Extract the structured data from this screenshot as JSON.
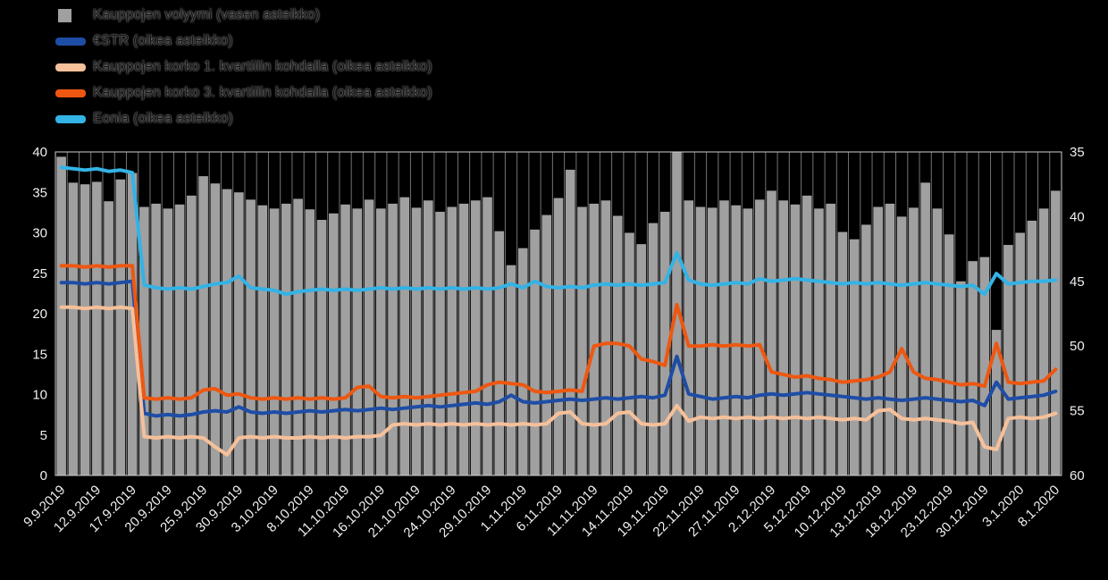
{
  "page": {
    "background_color": "#000000"
  },
  "legend": {
    "position": "top-left",
    "items": [
      {
        "id": "volume",
        "label": "Kauppojen volyymi (vasen asteikko)",
        "color": "#a0a0a0",
        "swatch": "square"
      },
      {
        "id": "estr",
        "label": "€STR (oikea asteikko)",
        "color": "#1e4da6",
        "swatch": "line"
      },
      {
        "id": "q1",
        "label": "Kauppojen korko 1. kvartiilin kohdalla (oikea asteikko)",
        "color": "#f6c09a",
        "swatch": "line"
      },
      {
        "id": "q3",
        "label": "Kauppojen korko 3. kvartiilin kohdalla (oikea asteikko)",
        "color": "#ee5711",
        "swatch": "line"
      },
      {
        "id": "eonia",
        "label": "Eonia (oikea asteikko)",
        "color": "#33b3e6",
        "swatch": "line"
      }
    ]
  },
  "chart_data": {
    "type": "combo-bar-line",
    "title": "",
    "legend_position": "top-left",
    "grid": {
      "vertical": true,
      "horizontal": false
    },
    "x_tick_step": 3,
    "left_axis": {
      "min": 0,
      "max": 40,
      "tick_values": [
        40,
        35,
        30,
        25,
        20,
        15,
        10,
        5,
        0
      ],
      "tick_labels": [
        "40",
        "35",
        "30",
        "25",
        "20",
        "15",
        "10",
        "5",
        "0"
      ]
    },
    "right_axis": {
      "min": -0.6,
      "max": -0.35,
      "tick_values": [
        -0.35,
        -0.4,
        -0.45,
        -0.5,
        -0.55,
        -0.6
      ],
      "tick_labels": [
        "35",
        "40",
        "45",
        "50",
        "55",
        "60"
      ]
    },
    "categories": [
      "9.9.2019",
      "10.9.2019",
      "11.9.2019",
      "12.9.2019",
      "13.9.2019",
      "16.9.2019",
      "17.9.2019",
      "18.9.2019",
      "19.9.2019",
      "20.9.2019",
      "23.9.2019",
      "24.9.2019",
      "25.9.2019",
      "26.9.2019",
      "27.9.2019",
      "30.9.2019",
      "1.10.2019",
      "2.10.2019",
      "3.10.2019",
      "4.10.2019",
      "7.10.2019",
      "8.10.2019",
      "9.10.2019",
      "10.10.2019",
      "11.10.2019",
      "14.10.2019",
      "15.10.2019",
      "16.10.2019",
      "17.10.2019",
      "18.10.2019",
      "21.10.2019",
      "22.10.2019",
      "23.10.2019",
      "24.10.2019",
      "25.10.2019",
      "28.10.2019",
      "29.10.2019",
      "30.10.2019",
      "31.10.2019",
      "1.11.2019",
      "4.11.2019",
      "5.11.2019",
      "6.11.2019",
      "7.11.2019",
      "8.11.2019",
      "11.11.2019",
      "12.11.2019",
      "13.11.2019",
      "14.11.2019",
      "15.11.2019",
      "18.11.2019",
      "19.11.2019",
      "20.11.2019",
      "21.11.2019",
      "22.11.2019",
      "25.11.2019",
      "26.11.2019",
      "27.11.2019",
      "28.11.2019",
      "29.11.2019",
      "2.12.2019",
      "3.12.2019",
      "4.12.2019",
      "5.12.2019",
      "6.12.2019",
      "9.12.2019",
      "10.12.2019",
      "11.12.2019",
      "12.12.2019",
      "13.12.2019",
      "16.12.2019",
      "17.12.2019",
      "18.12.2019",
      "19.12.2019",
      "20.12.2019",
      "23.12.2019",
      "24.12.2019",
      "27.12.2019",
      "30.12.2019",
      "31.12.2019",
      "2.1.2020",
      "3.1.2020",
      "6.1.2020",
      "7.1.2020",
      "8.1.2020"
    ],
    "series": [
      {
        "id": "volume",
        "name": "Kauppojen volyymi (vasen asteikko)",
        "type": "bar",
        "axis": "left",
        "color": "#a0a0a0",
        "values": [
          39.4,
          36.2,
          36.0,
          36.3,
          33.9,
          36.6,
          37.4,
          33.2,
          33.6,
          33.0,
          33.5,
          34.6,
          37.0,
          36.1,
          35.4,
          35.0,
          34.1,
          33.4,
          33.0,
          33.6,
          34.2,
          32.9,
          31.6,
          32.4,
          33.5,
          33.0,
          34.1,
          33.0,
          33.6,
          34.4,
          33.1,
          34.0,
          32.6,
          33.2,
          33.6,
          34.0,
          34.4,
          30.2,
          26.0,
          28.1,
          30.4,
          32.2,
          34.3,
          37.8,
          33.2,
          33.6,
          34.0,
          32.1,
          30.0,
          28.6,
          31.2,
          32.6,
          40.0,
          34.0,
          33.2,
          33.1,
          34.0,
          33.4,
          33.0,
          34.1,
          35.2,
          34.0,
          33.5,
          34.6,
          33.0,
          33.6,
          30.1,
          29.2,
          31.0,
          33.2,
          33.6,
          32.0,
          33.1,
          36.2,
          33.0,
          29.8,
          24.0,
          26.5,
          27.0,
          18.0,
          28.5,
          30.0,
          31.5,
          33.0,
          35.2
        ]
      },
      {
        "id": "estr",
        "name": "€STR (oikea asteikko)",
        "type": "line",
        "axis": "right",
        "color": "#1e4da6",
        "values": [
          -0.451,
          -0.451,
          -0.452,
          -0.451,
          -0.452,
          -0.451,
          -0.45,
          -0.552,
          -0.554,
          -0.553,
          -0.554,
          -0.553,
          -0.551,
          -0.55,
          -0.551,
          -0.547,
          -0.551,
          -0.552,
          -0.551,
          -0.552,
          -0.551,
          -0.55,
          -0.551,
          -0.55,
          -0.549,
          -0.55,
          -0.549,
          -0.548,
          -0.549,
          -0.548,
          -0.547,
          -0.546,
          -0.547,
          -0.546,
          -0.545,
          -0.544,
          -0.545,
          -0.543,
          -0.538,
          -0.543,
          -0.544,
          -0.543,
          -0.542,
          -0.541,
          -0.542,
          -0.541,
          -0.54,
          -0.541,
          -0.54,
          -0.539,
          -0.54,
          -0.538,
          -0.508,
          -0.537,
          -0.539,
          -0.541,
          -0.54,
          -0.539,
          -0.54,
          -0.538,
          -0.537,
          -0.538,
          -0.537,
          -0.536,
          -0.537,
          -0.538,
          -0.539,
          -0.54,
          -0.541,
          -0.54,
          -0.541,
          -0.542,
          -0.541,
          -0.54,
          -0.541,
          -0.542,
          -0.543,
          -0.542,
          -0.546,
          -0.528,
          -0.541,
          -0.54,
          -0.539,
          -0.538,
          -0.535
        ]
      },
      {
        "id": "q1",
        "name": "Kauppojen korko 1. kvartiilin kohdalla (oikea asteikko)",
        "type": "line",
        "axis": "right",
        "color": "#f6c09a",
        "values": [
          -0.47,
          -0.47,
          -0.471,
          -0.47,
          -0.471,
          -0.47,
          -0.471,
          -0.57,
          -0.571,
          -0.57,
          -0.571,
          -0.57,
          -0.571,
          -0.578,
          -0.584,
          -0.571,
          -0.57,
          -0.571,
          -0.57,
          -0.571,
          -0.571,
          -0.57,
          -0.571,
          -0.57,
          -0.571,
          -0.57,
          -0.57,
          -0.569,
          -0.561,
          -0.56,
          -0.561,
          -0.56,
          -0.561,
          -0.56,
          -0.561,
          -0.56,
          -0.561,
          -0.56,
          -0.561,
          -0.56,
          -0.561,
          -0.56,
          -0.552,
          -0.551,
          -0.56,
          -0.561,
          -0.56,
          -0.552,
          -0.551,
          -0.56,
          -0.561,
          -0.56,
          -0.546,
          -0.558,
          -0.555,
          -0.556,
          -0.555,
          -0.556,
          -0.555,
          -0.556,
          -0.555,
          -0.556,
          -0.555,
          -0.556,
          -0.555,
          -0.556,
          -0.557,
          -0.556,
          -0.557,
          -0.55,
          -0.549,
          -0.556,
          -0.557,
          -0.556,
          -0.557,
          -0.558,
          -0.56,
          -0.559,
          -0.578,
          -0.58,
          -0.556,
          -0.555,
          -0.556,
          -0.555,
          -0.552
        ]
      },
      {
        "id": "q3",
        "name": "Kauppojen korko 3. kvartiilin kohdalla (oikea asteikko)",
        "type": "line",
        "axis": "right",
        "color": "#ee5711",
        "values": [
          -0.438,
          -0.438,
          -0.439,
          -0.438,
          -0.439,
          -0.438,
          -0.438,
          -0.54,
          -0.541,
          -0.54,
          -0.541,
          -0.54,
          -0.534,
          -0.533,
          -0.538,
          -0.537,
          -0.54,
          -0.541,
          -0.54,
          -0.541,
          -0.54,
          -0.541,
          -0.54,
          -0.541,
          -0.54,
          -0.532,
          -0.531,
          -0.539,
          -0.54,
          -0.539,
          -0.54,
          -0.539,
          -0.538,
          -0.537,
          -0.536,
          -0.535,
          -0.53,
          -0.528,
          -0.529,
          -0.53,
          -0.535,
          -0.536,
          -0.535,
          -0.534,
          -0.535,
          -0.5,
          -0.498,
          -0.498,
          -0.5,
          -0.51,
          -0.512,
          -0.515,
          -0.468,
          -0.5,
          -0.5,
          -0.499,
          -0.5,
          -0.499,
          -0.5,
          -0.499,
          -0.52,
          -0.522,
          -0.524,
          -0.523,
          -0.525,
          -0.526,
          -0.528,
          -0.527,
          -0.526,
          -0.524,
          -0.52,
          -0.502,
          -0.52,
          -0.525,
          -0.526,
          -0.528,
          -0.53,
          -0.529,
          -0.531,
          -0.498,
          -0.528,
          -0.529,
          -0.528,
          -0.527,
          -0.518
        ]
      },
      {
        "id": "eonia",
        "name": "Eonia (oikea asteikko)",
        "type": "line",
        "axis": "right",
        "color": "#33b3e6",
        "values": [
          -0.362,
          -0.363,
          -0.364,
          -0.363,
          -0.365,
          -0.364,
          -0.366,
          -0.453,
          -0.455,
          -0.456,
          -0.455,
          -0.456,
          -0.454,
          -0.452,
          -0.451,
          -0.446,
          -0.455,
          -0.456,
          -0.457,
          -0.46,
          -0.458,
          -0.457,
          -0.456,
          -0.457,
          -0.456,
          -0.457,
          -0.456,
          -0.455,
          -0.456,
          -0.455,
          -0.456,
          -0.455,
          -0.456,
          -0.455,
          -0.456,
          -0.455,
          -0.456,
          -0.455,
          -0.452,
          -0.455,
          -0.45,
          -0.454,
          -0.455,
          -0.454,
          -0.455,
          -0.453,
          -0.452,
          -0.453,
          -0.452,
          -0.453,
          -0.452,
          -0.451,
          -0.428,
          -0.449,
          -0.452,
          -0.453,
          -0.452,
          -0.451,
          -0.452,
          -0.448,
          -0.45,
          -0.449,
          -0.448,
          -0.449,
          -0.45,
          -0.451,
          -0.452,
          -0.451,
          -0.452,
          -0.451,
          -0.452,
          -0.453,
          -0.452,
          -0.451,
          -0.452,
          -0.453,
          -0.454,
          -0.453,
          -0.46,
          -0.444,
          -0.452,
          -0.451,
          -0.45,
          -0.45,
          -0.449
        ]
      }
    ]
  }
}
